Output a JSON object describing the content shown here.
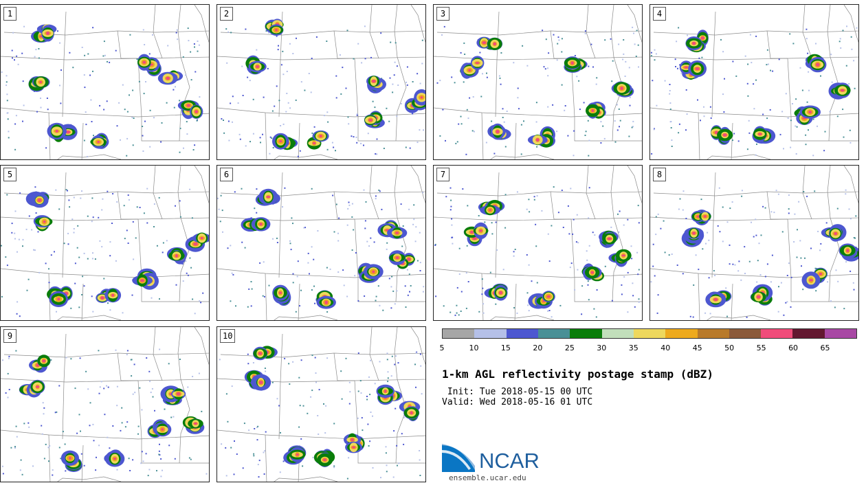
{
  "panels": [
    {
      "label": "1"
    },
    {
      "label": "2"
    },
    {
      "label": "3"
    },
    {
      "label": "4"
    },
    {
      "label": "5"
    },
    {
      "label": "6"
    },
    {
      "label": "7"
    },
    {
      "label": "8"
    },
    {
      "label": "9"
    },
    {
      "label": "10"
    }
  ],
  "colorbar": {
    "colors": [
      "#a6a6a6",
      "#b5c0e8",
      "#4d57d0",
      "#4a9096",
      "#0a7d0a",
      "#c2dfbb",
      "#eed85d",
      "#eeaa1d",
      "#b87a2a",
      "#8b5a3a",
      "#f04c7a",
      "#631830",
      "#a848a4"
    ],
    "ticks": [
      "5",
      "10",
      "15",
      "20",
      "25",
      "30",
      "35",
      "40",
      "45",
      "50",
      "55",
      "60",
      "65"
    ]
  },
  "title": "1-km AGL reflectivity postage stamp (dBZ)",
  "init": " Init: Tue 2018-05-15 00 UTC",
  "valid": "Valid: Wed 2018-05-16 01 UTC",
  "logo": {
    "text": "NCAR",
    "url": "ensemble.ucar.edu"
  }
}
